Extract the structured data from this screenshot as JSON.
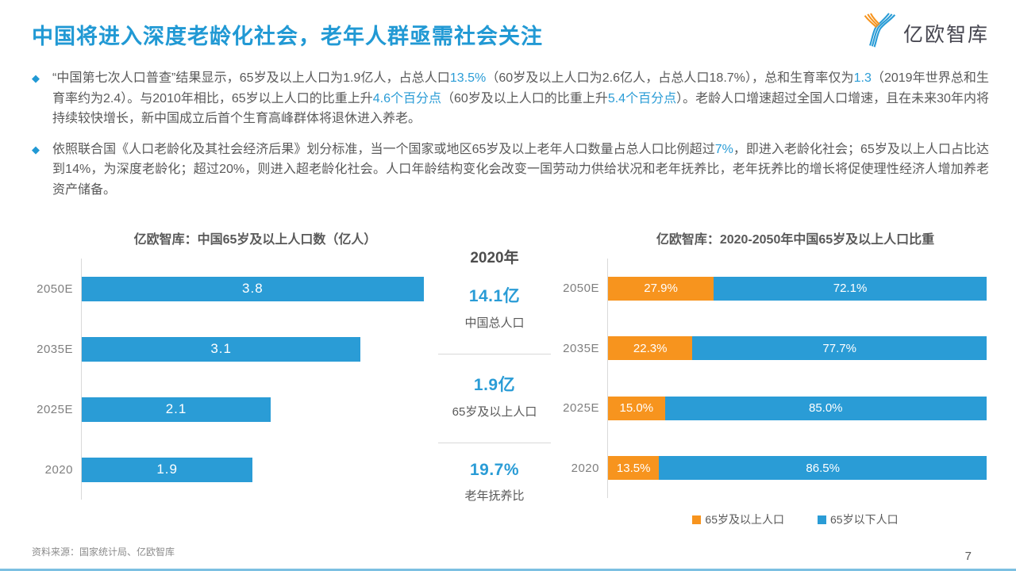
{
  "header": {
    "title": "中国将进入深度老龄化社会，老年人群亟需社会关注",
    "logo_text": "亿欧智库"
  },
  "colors": {
    "accent_blue": "#2a9cd6",
    "accent_orange": "#f7941e",
    "body_text": "#595959",
    "axis_gray": "#d9d9d9"
  },
  "bullets": [
    {
      "marker": "◆",
      "segments": [
        {
          "text": "“中国第七次人口普查”结果显示，65岁及以上人口为1.9亿人，占总人口",
          "hl": false
        },
        {
          "text": "13.5%",
          "hl": true
        },
        {
          "text": "（60岁及以上人口为2.6亿人，占总人口18.7%），总和生育率仅为",
          "hl": false
        },
        {
          "text": "1.3",
          "hl": true
        },
        {
          "text": "（2019年世界总和生育率约为2.4）。与2010年相比，65岁以上人口的比重上升",
          "hl": false
        },
        {
          "text": "4.6个百分点",
          "hl": true
        },
        {
          "text": "（60岁及以上人口的比重上升",
          "hl": false
        },
        {
          "text": "5.4个百分点",
          "hl": true
        },
        {
          "text": "）。老龄人口增速超过全国人口增速，且在未来30年内将持续较快增长，新中国成立后首个生育高峰群体将退休进入养老。",
          "hl": false
        }
      ]
    },
    {
      "marker": "◆",
      "segments": [
        {
          "text": "依照联合国《人口老龄化及其社会经济后果》划分标准，当一个国家或地区65岁及以上老年人口数量占总人口比例超过",
          "hl": false
        },
        {
          "text": "7%",
          "hl": true
        },
        {
          "text": "，即进入老龄化社会；65岁及以上人口占比达到14%，为深度老龄化；超过20%，则进入超老龄化社会。人口年龄结构变化会改变一国劳动力供给状况和老年抚养比，老年抚养比的增长将促使理性经济人增加养老资产储备。",
          "hl": false
        }
      ]
    }
  ],
  "stats_panel": {
    "year": "2020年",
    "items": [
      {
        "value": "14.1亿",
        "label": "中国总人口"
      },
      {
        "value": "1.9亿",
        "label": "65岁及以上人口"
      },
      {
        "value": "19.7%",
        "label": "老年抚养比"
      }
    ]
  },
  "chart_data": [
    {
      "type": "bar",
      "orientation": "horizontal",
      "title": "亿欧智库：中国65岁及以上人口数（亿人）",
      "categories": [
        "2050E",
        "2035E",
        "2025E",
        "2020"
      ],
      "values": [
        3.8,
        3.1,
        2.1,
        1.9
      ],
      "xlim": [
        0,
        3.9
      ],
      "bar_color": "#2a9cd6",
      "grid": false,
      "value_label_format": "0.0"
    },
    {
      "type": "bar",
      "orientation": "horizontal-stacked-100",
      "title": "亿欧智库：2020-2050年中国65岁及以上人口比重",
      "categories": [
        "2050E",
        "2035E",
        "2025E",
        "2020"
      ],
      "series": [
        {
          "name": "65岁及以上人口",
          "color": "#f7941e",
          "values": [
            27.9,
            22.3,
            15.0,
            13.5
          ]
        },
        {
          "name": "65岁以下人口",
          "color": "#2a9cd6",
          "values": [
            72.1,
            77.7,
            85.0,
            86.5
          ]
        }
      ],
      "xlim": [
        0,
        100
      ],
      "legend_position": "bottom-center",
      "grid": false,
      "value_label_format": "0.0%"
    }
  ],
  "footer": {
    "source": "资料来源：国家统计局、亿欧智库",
    "page_number": "7"
  }
}
